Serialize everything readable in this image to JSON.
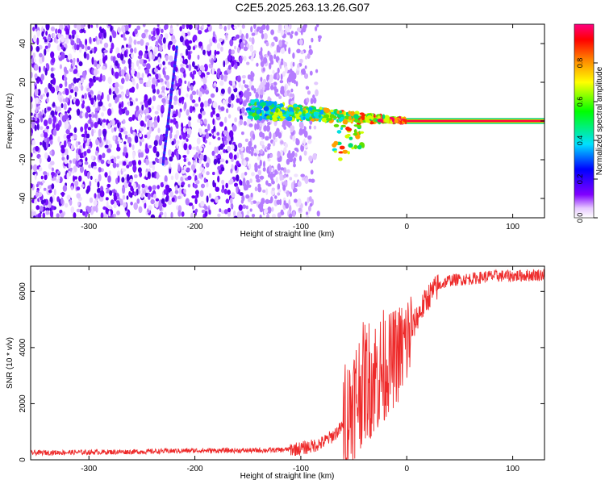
{
  "figure_title": "C2E5.2025.263.13.26.G07",
  "chart_data": [
    {
      "type": "heatmap",
      "title": "C2E5.2025.263.13.26.G07",
      "xlabel": "Height of straight line (km)",
      "ylabel": "Frequency (Hz)",
      "xlim": [
        -355,
        130
      ],
      "ylim": [
        -50,
        50
      ],
      "xticks": [
        -300,
        -200,
        -100,
        0,
        100
      ],
      "yticks": [
        -40,
        -20,
        0,
        20,
        40
      ],
      "colorbar": {
        "label": "Normalized spectral amplitude",
        "range": [
          0,
          1
        ],
        "ticks": [
          "0.0",
          "0.2",
          "0.4",
          "0.6",
          "0.8"
        ],
        "tick_values": [
          0.0,
          0.2,
          0.4,
          0.6,
          0.8
        ],
        "colors": [
          "#ffffff",
          "#8000ff",
          "#0000ff",
          "#00ffff",
          "#00ff00",
          "#ffff00",
          "#ff8000",
          "#ff0000",
          "#ff0080"
        ]
      },
      "features": {
        "noise_region_x": [
          -355,
          -110
        ],
        "diagonal_streak": {
          "x": [
            -230,
            -217
          ],
          "y": [
            -22,
            38
          ]
        },
        "signal_band": {
          "x": [
            -150,
            0
          ],
          "y_center": [
            6,
            0
          ],
          "y_spread": [
            5,
            1
          ]
        },
        "carrier_line": {
          "x": [
            0,
            130
          ],
          "y": 0
        }
      }
    },
    {
      "type": "line",
      "xlabel": "Height of straight line (km)",
      "ylabel": "SNR (10 * v/v)",
      "xlim": [
        -355,
        130
      ],
      "ylim": [
        0,
        6900
      ],
      "xticks": [
        -300,
        -200,
        -100,
        0,
        100
      ],
      "yticks": [
        0,
        2000,
        4000,
        6000
      ],
      "series": [
        {
          "name": "SNR",
          "color": "#ee2a2a",
          "x": [
            -355,
            -300,
            -250,
            -200,
            -150,
            -120,
            -100,
            -90,
            -80,
            -70,
            -60,
            -55,
            -50,
            -45,
            -40,
            -35,
            -30,
            -25,
            -20,
            -15,
            -10,
            -5,
            0,
            10,
            20,
            30,
            40,
            60,
            80,
            100,
            130
          ],
          "y": [
            250,
            270,
            290,
            330,
            330,
            350,
            400,
            480,
            600,
            850,
            1200,
            1600,
            2100,
            2500,
            2800,
            2900,
            3000,
            3100,
            3300,
            3500,
            3700,
            3900,
            4200,
            5100,
            5800,
            6200,
            6400,
            6450,
            6550,
            6550,
            6600
          ]
        }
      ]
    }
  ]
}
